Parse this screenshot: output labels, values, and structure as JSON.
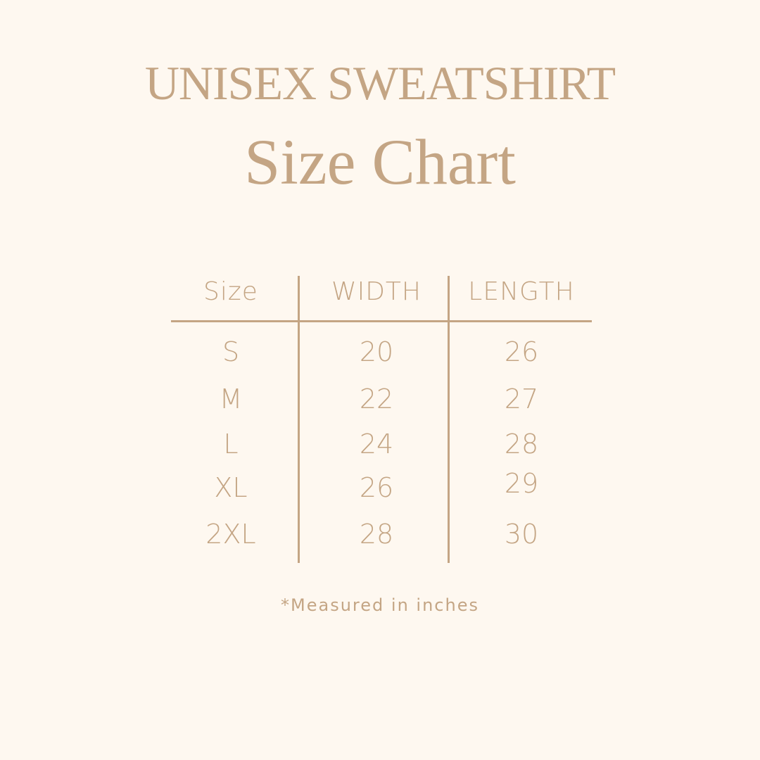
{
  "title": "UNISEX SWEATSHIRT",
  "subtitle": "Size Chart",
  "table": {
    "headers": [
      "Size",
      "WIDTH",
      "LENGTH"
    ],
    "rows": [
      [
        "S",
        "20",
        "26"
      ],
      [
        "M",
        "22",
        "27"
      ],
      [
        "L",
        "24",
        "28"
      ],
      [
        "XL",
        "26",
        "29"
      ],
      [
        "2XL",
        "28",
        "30"
      ]
    ]
  },
  "note": "*Measured in inches",
  "colors": {
    "text": "#c4a584",
    "background": "#fef8f0"
  }
}
